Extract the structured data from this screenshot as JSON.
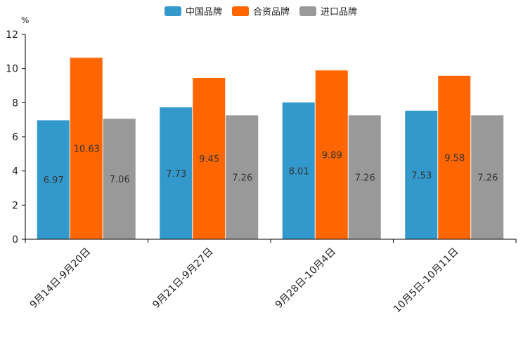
{
  "chart_data": {
    "type": "bar",
    "unit": "%",
    "categories": [
      "9月14日-9月20日",
      "9月21日-9月27日",
      "9月28日-10月4日",
      "10月5日-10月11日"
    ],
    "series": [
      {
        "name": "中国品牌",
        "color": "#3399cc",
        "values": [
          6.97,
          7.73,
          8.01,
          7.53
        ]
      },
      {
        "name": "合资品牌",
        "color": "#ff6600",
        "values": [
          10.63,
          9.45,
          9.89,
          9.58
        ]
      },
      {
        "name": "进口品牌",
        "color": "#999999",
        "values": [
          7.06,
          7.26,
          7.26,
          7.26
        ]
      }
    ],
    "ylim": [
      0,
      12
    ],
    "yticks": [
      0,
      2,
      4,
      6,
      8,
      10,
      12
    ],
    "legend_position": "top-center",
    "grid": false
  }
}
